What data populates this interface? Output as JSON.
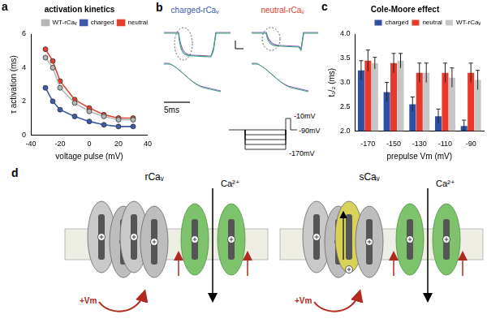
{
  "chart_data": [
    {
      "type": "line",
      "title": "activation kinetics",
      "annotations": [
        "a"
      ],
      "x_label": "voltage pulse (mV)",
      "y_label": "τ activation (ms)",
      "x": [
        -30,
        -25,
        -20,
        -10,
        0,
        10,
        20,
        30
      ],
      "series": [
        {
          "name": "WT-rCaᵥ",
          "color": "#b5b5b5",
          "marker": "circle",
          "values": [
            4.6,
            4.0,
            2.8,
            1.9,
            1.4,
            1.1,
            0.9,
            0.9
          ]
        },
        {
          "name": "charged",
          "color": "#3c5aa8",
          "marker": "circle",
          "values": [
            2.8,
            2.0,
            1.5,
            1.1,
            0.8,
            0.6,
            0.5,
            0.5
          ]
        },
        {
          "name": "neutral",
          "color": "#e2412e",
          "marker": "circle",
          "values": [
            5.1,
            4.4,
            3.2,
            2.1,
            1.6,
            1.2,
            1.0,
            1.0
          ]
        }
      ],
      "xlim": [
        -40,
        40
      ],
      "xticks": [
        -40,
        -20,
        0,
        20,
        40
      ],
      "ylim": [
        0,
        6
      ],
      "yticks": [
        0,
        2,
        4,
        6
      ],
      "grid": false,
      "legend": "upper right"
    },
    {
      "type": "bar",
      "title": "Cole-Moore effect",
      "annotations": [
        "c"
      ],
      "x_label": "prepulse Vm (mV)",
      "y_label": "t₁/₂ (ms)",
      "categories": [
        "-170",
        "-150",
        "-130",
        "-110",
        "-90"
      ],
      "series": [
        {
          "name": "charged",
          "color": "#2e4fa3",
          "values": [
            3.25,
            2.8,
            2.55,
            2.3,
            2.1
          ],
          "errors": [
            0.2,
            0.2,
            0.15,
            0.15,
            0.12
          ]
        },
        {
          "name": "neutral",
          "color": "#e8392a",
          "values": [
            3.45,
            3.4,
            3.2,
            3.2,
            3.2
          ],
          "errors": [
            0.22,
            0.2,
            0.2,
            0.2,
            0.2
          ]
        },
        {
          "name": "WT-rCaᵥ",
          "color": "#c6c6c6",
          "values": [
            3.4,
            3.45,
            3.2,
            3.1,
            3.05
          ],
          "errors": [
            0.12,
            0.15,
            0.2,
            0.2,
            0.2
          ]
        }
      ],
      "ylim": [
        2,
        4
      ],
      "yticks": [
        {
          "value": 2,
          "label": "2.0"
        },
        {
          "value": 2.5,
          "label": "2.5"
        },
        {
          "value": 3,
          "label": "3.0"
        },
        {
          "value": 3.5,
          "label": "3.5"
        },
        {
          "value": 4,
          "label": "4.0"
        }
      ],
      "grid": false,
      "legend": "upper right"
    }
  ],
  "panels": {
    "b": {
      "label": "b",
      "titles": [
        {
          "text": "charged-rCaᵥ",
          "color": "#3c5aa8"
        },
        {
          "text": "neutral-rCaᵥ",
          "color": "#e2412e"
        }
      ],
      "scale_bar": "5ms",
      "protocol_labels": {
        "top": "-10mV",
        "middle": "-90mV",
        "bottom": "-170mV"
      }
    },
    "d": {
      "label": "d",
      "channels": [
        {
          "name": "rCaᵥ",
          "ion": "Ca²⁺",
          "stimulus": "+Vm"
        },
        {
          "name": "sCaᵥ",
          "ion": "Ca²⁺",
          "stimulus": "+Vm"
        }
      ]
    }
  }
}
